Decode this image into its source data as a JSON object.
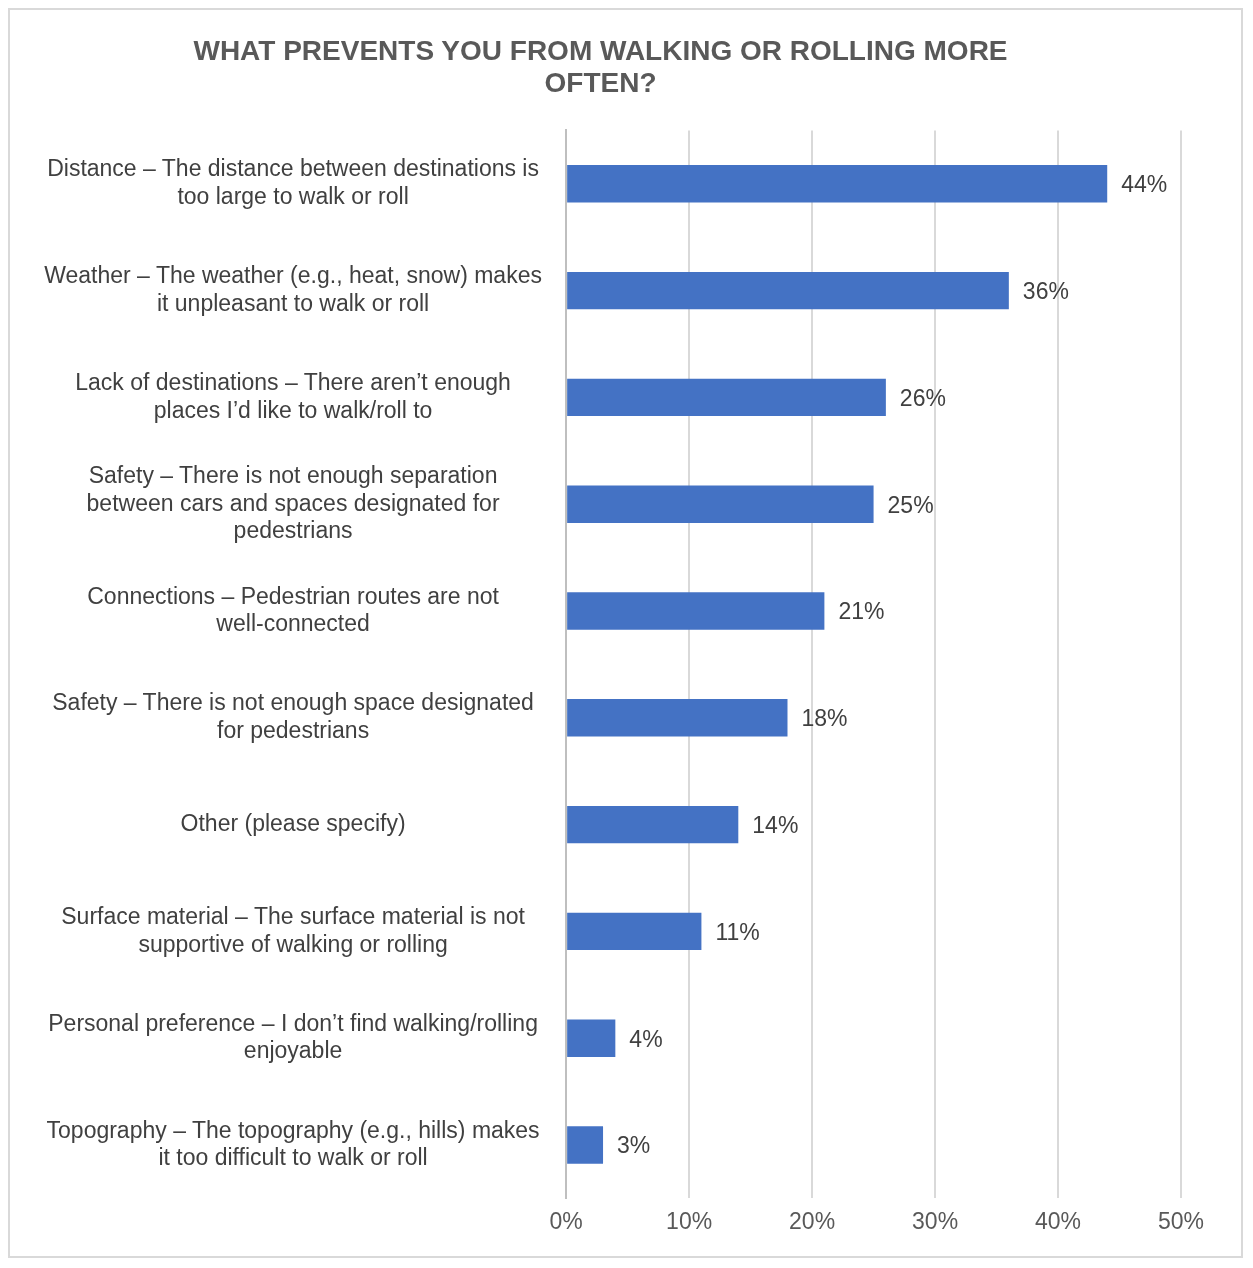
{
  "chart_data": {
    "type": "bar",
    "orientation": "horizontal",
    "title": "WHAT PREVENTS YOU FROM WALKING OR ROLLING MORE OFTEN?",
    "categories": [
      "Distance – The distance between destinations is too large to walk or roll",
      "Weather – The weather (e.g., heat, snow) makes it unpleasant to walk or roll",
      "Lack of destinations – There aren’t enough places I’d like to walk/roll to",
      "Safety – There is not enough separation between cars and spaces designated for pedestrians",
      "Connections – Pedestrian routes are not well-connected",
      "Safety – There is not enough space designated for pedestrians",
      "Other (please specify)",
      "Surface material – The surface material is not supportive of walking or rolling",
      "Personal preference – I don’t find walking/rolling enjoyable",
      "Topography – The topography (e.g., hills) makes it too difficult to walk or roll"
    ],
    "values": [
      44,
      36,
      26,
      25,
      21,
      18,
      14,
      11,
      4,
      3
    ],
    "value_labels": [
      "44%",
      "36%",
      "26%",
      "25%",
      "21%",
      "18%",
      "14%",
      "11%",
      "4%",
      "3%"
    ],
    "color": "#4472c4",
    "xlim": [
      0,
      50
    ],
    "xticks": [
      {
        "value": 0,
        "label": "0%"
      },
      {
        "value": 10,
        "label": "10%"
      },
      {
        "value": 20,
        "label": "20%"
      },
      {
        "value": 30,
        "label": "30%"
      },
      {
        "value": 40,
        "label": "40%"
      },
      {
        "value": 50,
        "label": "50%"
      }
    ],
    "grid": "x",
    "legend": false
  }
}
